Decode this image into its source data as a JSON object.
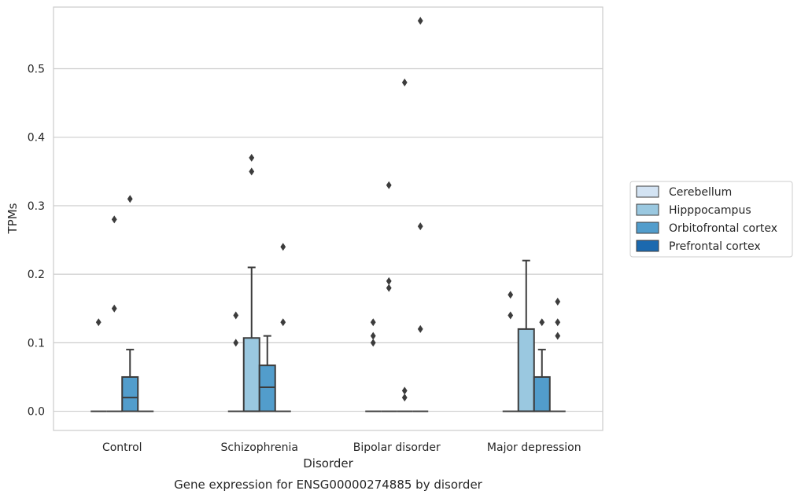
{
  "chart_data": {
    "type": "box",
    "title": "",
    "caption": "Gene expression for ENSG00000274885 by disorder",
    "xlabel": "Disorder",
    "ylabel": "TPMs",
    "ylim": [
      -0.028,
      0.59
    ],
    "yticks": [
      0.0,
      0.1,
      0.2,
      0.3,
      0.4,
      0.5
    ],
    "ytick_labels": [
      "0.0",
      "0.1",
      "0.2",
      "0.3",
      "0.4",
      "0.5"
    ],
    "grid": "horizontal",
    "legend_position": "right",
    "categories": [
      "Control",
      "Schizophrenia",
      "Bipolar disorder",
      "Major depression"
    ],
    "series": [
      {
        "name": "Cerebellum",
        "color": "#d3e3f3",
        "boxes": [
          {
            "category": "Control",
            "q1": 0,
            "median": 0,
            "q3": 0,
            "whisker_low": 0,
            "whisker_high": 0,
            "outliers": [
              0.13
            ]
          },
          {
            "category": "Schizophrenia",
            "q1": 0,
            "median": 0,
            "q3": 0,
            "whisker_low": 0,
            "whisker_high": 0,
            "outliers": [
              0.14,
              0.1
            ]
          },
          {
            "category": "Bipolar disorder",
            "q1": 0,
            "median": 0,
            "q3": 0,
            "whisker_low": 0,
            "whisker_high": 0,
            "outliers": [
              0.13,
              0.11,
              0.1
            ]
          },
          {
            "category": "Major depression",
            "q1": 0,
            "median": 0,
            "q3": 0,
            "whisker_low": 0,
            "whisker_high": 0,
            "outliers": [
              0.17,
              0.14
            ]
          }
        ]
      },
      {
        "name": "Hipppocampus",
        "color": "#9ac8e0",
        "boxes": [
          {
            "category": "Control",
            "q1": 0,
            "median": 0,
            "q3": 0,
            "whisker_low": 0,
            "whisker_high": 0,
            "outliers": [
              0.28,
              0.15
            ]
          },
          {
            "category": "Schizophrenia",
            "q1": 0,
            "median": 0,
            "q3": 0.107,
            "whisker_low": 0,
            "whisker_high": 0.21,
            "outliers": [
              0.37,
              0.35
            ]
          },
          {
            "category": "Bipolar disorder",
            "q1": 0,
            "median": 0,
            "q3": 0,
            "whisker_low": 0,
            "whisker_high": 0,
            "outliers": [
              0.33,
              0.19,
              0.18
            ]
          },
          {
            "category": "Major depression",
            "q1": 0,
            "median": 0,
            "q3": 0.12,
            "whisker_low": 0,
            "whisker_high": 0.22,
            "outliers": []
          }
        ]
      },
      {
        "name": "Orbitofrontal cortex",
        "color": "#529dcc",
        "boxes": [
          {
            "category": "Control",
            "q1": 0,
            "median": 0.02,
            "q3": 0.05,
            "whisker_low": 0,
            "whisker_high": 0.09,
            "outliers": [
              0.31
            ]
          },
          {
            "category": "Schizophrenia",
            "q1": 0,
            "median": 0.035,
            "q3": 0.067,
            "whisker_low": 0,
            "whisker_high": 0.11,
            "outliers": []
          },
          {
            "category": "Bipolar disorder",
            "q1": 0,
            "median": 0,
            "q3": 0,
            "whisker_low": 0,
            "whisker_high": 0,
            "outliers": [
              0.48,
              0.03,
              0.02
            ]
          },
          {
            "category": "Major depression",
            "q1": 0,
            "median": 0,
            "q3": 0.05,
            "whisker_low": 0,
            "whisker_high": 0.09,
            "outliers": [
              0.13
            ]
          }
        ]
      },
      {
        "name": "Prefrontal cortex",
        "color": "#1b69af",
        "boxes": [
          {
            "category": "Control",
            "q1": 0,
            "median": 0,
            "q3": 0,
            "whisker_low": 0,
            "whisker_high": 0,
            "outliers": []
          },
          {
            "category": "Schizophrenia",
            "q1": 0,
            "median": 0,
            "q3": 0,
            "whisker_low": 0,
            "whisker_high": 0,
            "outliers": [
              0.24,
              0.13
            ]
          },
          {
            "category": "Bipolar disorder",
            "q1": 0,
            "median": 0,
            "q3": 0,
            "whisker_low": 0,
            "whisker_high": 0,
            "outliers": [
              0.57,
              0.27,
              0.12
            ]
          },
          {
            "category": "Major depression",
            "q1": 0,
            "median": 0,
            "q3": 0,
            "whisker_low": 0,
            "whisker_high": 0,
            "outliers": [
              0.16,
              0.13,
              0.11
            ]
          }
        ]
      }
    ]
  }
}
